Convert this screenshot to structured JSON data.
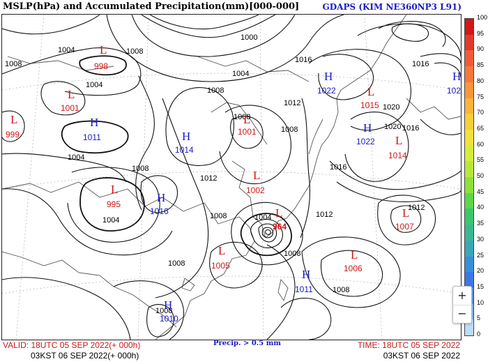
{
  "header": {
    "title": "MSLP(hPa) and Accumulated Precipitation(mm)[000-000]",
    "model": "GDAPS (KIM NE360NP3 L91)"
  },
  "pressure_centers": [
    {
      "type": "L",
      "value": "998"
    },
    {
      "type": "L",
      "value": "1001"
    },
    {
      "type": "L",
      "value": "999"
    },
    {
      "type": "H",
      "value": "1011"
    },
    {
      "type": "L",
      "value": "995"
    },
    {
      "type": "H",
      "value": "1014"
    },
    {
      "type": "H",
      "value": "1016"
    },
    {
      "type": "L",
      "value": "1001"
    },
    {
      "type": "L",
      "value": "1002"
    },
    {
      "type": "H",
      "value": "1022"
    },
    {
      "type": "L",
      "value": "1015"
    },
    {
      "type": "H",
      "value": "1022"
    },
    {
      "type": "L",
      "value": "1014"
    },
    {
      "type": "H",
      "value": "102"
    },
    {
      "type": "L",
      "value": "964"
    },
    {
      "type": "L",
      "value": "1007"
    },
    {
      "type": "L",
      "value": "1005"
    },
    {
      "type": "L",
      "value": "1006"
    },
    {
      "type": "H",
      "value": "1011"
    },
    {
      "type": "H",
      "value": "1010"
    }
  ],
  "isobar_labels": [
    "1008",
    "1004",
    "1004",
    "1008",
    "1004",
    "1004",
    "1008",
    "1000",
    "1004",
    "1008",
    "1016",
    "1016",
    "1020",
    "1020",
    "1016",
    "1008",
    "1012",
    "1016",
    "1008",
    "1012",
    "1008",
    "1004",
    "1012",
    "1012",
    "1008",
    "1008",
    "1008",
    "1008"
  ],
  "footer": {
    "valid": "VALID: 18UTC 05 SEP 2022(+ 000h)",
    "kst_left": "03KST 06 SEP 2022(+ 000h)",
    "precip_note": "Precip. > 0.5 mm",
    "time": "TIME: 18UTC 05 SEP 2022",
    "kst_right": "03KST 06 SEP 2022"
  },
  "colorbar": {
    "labels": [
      "100",
      "95",
      "90",
      "85",
      "80",
      "75",
      "70",
      "65",
      "60",
      "55",
      "50",
      "45",
      "40",
      "35",
      "30",
      "25",
      "20",
      "15",
      "10",
      "5",
      "0"
    ],
    "colors": [
      "#d01818",
      "#e23a2a",
      "#f05a3a",
      "#f5783a",
      "#f8963a",
      "#fab43a",
      "#f6cf3a",
      "#f0e23a",
      "#d6ec3a",
      "#b6e83a",
      "#8ee03a",
      "#5cd64a",
      "#3ac86a",
      "#3ab890",
      "#3aa6b8",
      "#3a8ed8",
      "#3a78e6",
      "#5aa0f0",
      "#8cc0f4",
      "#bcdcf8"
    ]
  },
  "controls": {
    "zoom_in": "+",
    "zoom_out": "−"
  }
}
